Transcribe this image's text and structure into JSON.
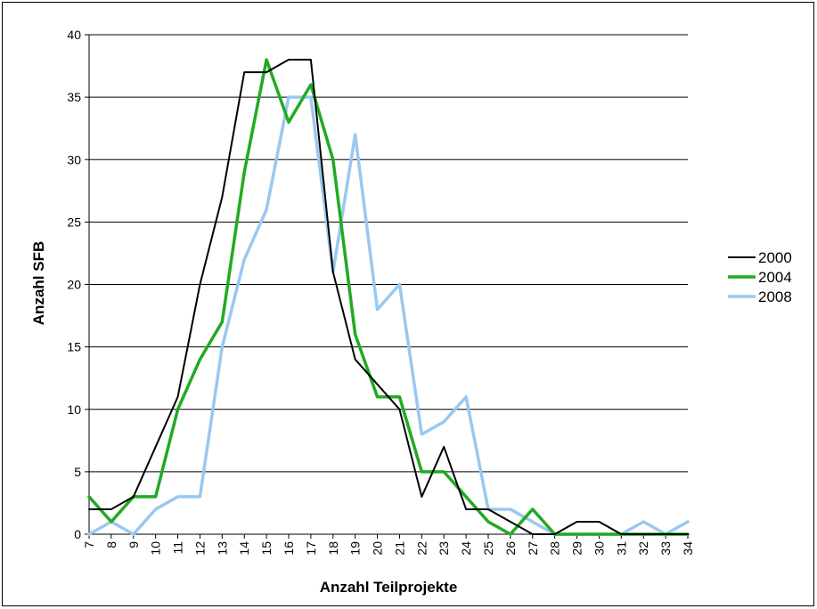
{
  "chart_data": {
    "type": "line",
    "xlabel": "Anzahl Teilprojekte",
    "ylabel": "Anzahl SFB",
    "ylim": [
      0,
      40
    ],
    "yticks": [
      "0",
      "5",
      "10",
      "15",
      "20",
      "25",
      "30",
      "35",
      "40"
    ],
    "categories": [
      "7",
      "8",
      "9",
      "10",
      "11",
      "12",
      "13",
      "14",
      "15",
      "16",
      "17",
      "18",
      "19",
      "20",
      "21",
      "22",
      "23",
      "24",
      "25",
      "26",
      "27",
      "28",
      "29",
      "30",
      "31",
      "32",
      "33",
      "34"
    ],
    "grid": true,
    "legend_position": "right",
    "series": [
      {
        "name": "2000",
        "color": "#000000",
        "values": [
          2,
          2,
          3,
          7,
          11,
          20,
          27,
          37,
          37,
          38,
          38,
          21,
          14,
          12,
          10,
          3,
          7,
          2,
          2,
          1,
          0,
          0,
          1,
          1,
          0,
          0,
          0,
          0
        ]
      },
      {
        "name": "2004",
        "color": "#22aa22",
        "values": [
          3,
          1,
          3,
          3,
          10,
          14,
          17,
          29,
          38,
          33,
          36,
          30,
          16,
          11,
          11,
          5,
          5,
          3,
          1,
          0,
          2,
          0,
          0,
          0,
          0,
          0,
          0,
          0
        ]
      },
      {
        "name": "2008",
        "color": "#99c8f0",
        "values": [
          0,
          1,
          0,
          2,
          3,
          3,
          15,
          22,
          26,
          35,
          35,
          21,
          32,
          18,
          20,
          8,
          9,
          11,
          2,
          2,
          1,
          0,
          0,
          0,
          0,
          1,
          0,
          1
        ]
      }
    ]
  }
}
